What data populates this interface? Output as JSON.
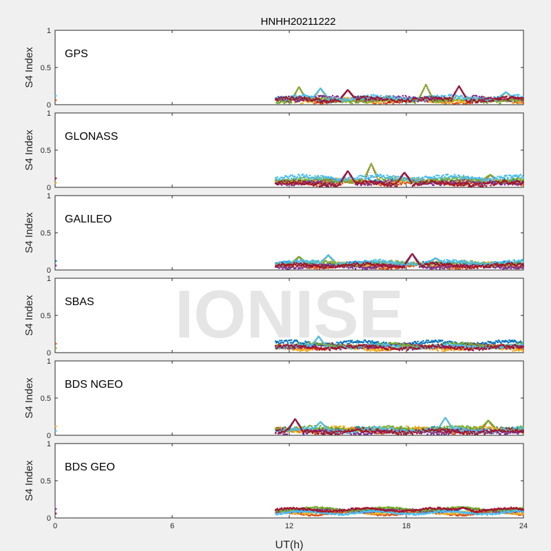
{
  "chart_data": {
    "type": "scatter",
    "title": "HNHH20211222",
    "xlabel": "UT(h)",
    "ylabel": "S4 Index",
    "xlim": [
      0,
      24
    ],
    "ylim": [
      0,
      1
    ],
    "xticks": [
      0,
      6,
      12,
      18,
      24
    ],
    "yticks": [
      0,
      0.5,
      1
    ],
    "watermark": "IONISE",
    "palette": [
      "#0072bd",
      "#d95319",
      "#edb120",
      "#7e2f8e",
      "#77ac30",
      "#4dbeee",
      "#a2142f"
    ],
    "panels": [
      {
        "name": "GPS",
        "start": 11.3,
        "base": [
          0.07,
          0.05,
          0.06,
          0.08,
          0.06,
          0.09,
          0.07
        ],
        "noise": 0.025,
        "spikes": [
          [
            12.5,
            0.24
          ],
          [
            13.6,
            0.22
          ],
          [
            15.0,
            0.2
          ],
          [
            19.0,
            0.27
          ],
          [
            20.7,
            0.25
          ],
          [
            23.1,
            0.17
          ]
        ]
      },
      {
        "name": "GLONASS",
        "start": 11.3,
        "base": [
          0.07,
          0.06,
          0.08,
          0.07,
          0.1,
          0.13,
          0.05
        ],
        "noise": 0.025,
        "spikes": [
          [
            16.2,
            0.32
          ],
          [
            15.0,
            0.22
          ],
          [
            17.9,
            0.2
          ],
          [
            22.3,
            0.17
          ]
        ]
      },
      {
        "name": "GALILEO",
        "start": 11.3,
        "base": [
          0.08,
          0.05,
          0.07,
          0.05,
          0.09,
          0.1,
          0.06
        ],
        "noise": 0.02,
        "spikes": [
          [
            12.5,
            0.18
          ],
          [
            14.0,
            0.2
          ],
          [
            18.3,
            0.22
          ],
          [
            19.5,
            0.16
          ]
        ]
      },
      {
        "name": "SBAS",
        "start": 11.3,
        "base": [
          0.13,
          0.07,
          0.06,
          0.09,
          0.1,
          0.08,
          0.07
        ],
        "noise": 0.02,
        "spikes": [
          [
            13.5,
            0.22
          ]
        ]
      },
      {
        "name": "BDS NGEO",
        "start": 11.3,
        "base": [
          0.07,
          0.06,
          0.08,
          0.05,
          0.09,
          0.07,
          0.05
        ],
        "noise": 0.025,
        "spikes": [
          [
            12.3,
            0.22
          ],
          [
            20.0,
            0.24
          ],
          [
            22.2,
            0.2
          ],
          [
            13.6,
            0.18
          ]
        ]
      },
      {
        "name": "BDS GEO",
        "start": 11.3,
        "base": [
          0.09,
          0.06,
          0.08,
          0.1,
          0.12,
          0.07,
          0.11
        ],
        "noise": 0.012,
        "spikes": [
          [
            20.9,
            0.14
          ]
        ]
      }
    ]
  }
}
